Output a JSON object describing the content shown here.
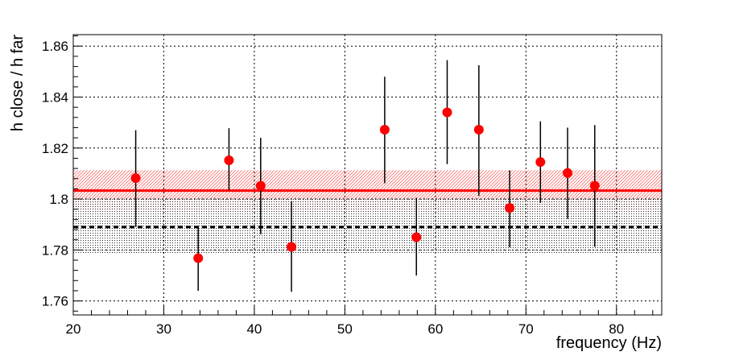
{
  "chart_data": {
    "type": "scatter",
    "xlabel": "frequency (Hz)",
    "ylabel": "h close / h far",
    "xlim": [
      20,
      85
    ],
    "ylim": [
      1.7545,
      1.8645
    ],
    "grid": true,
    "x_ticks": [
      20,
      30,
      40,
      50,
      60,
      70,
      80
    ],
    "y_ticks": [
      1.76,
      1.78,
      1.8,
      1.82,
      1.84,
      1.86
    ],
    "x_tick_labels": [
      "20",
      "30",
      "40",
      "50",
      "60",
      "70",
      "80"
    ],
    "y_tick_labels": [
      "1.76",
      "1.78",
      "1.8",
      "1.82",
      "1.84",
      "1.86"
    ],
    "points": [
      {
        "x": 26.9,
        "y": 1.8082,
        "err_low": 0.0192,
        "err_high": 0.0188
      },
      {
        "x": 33.8,
        "y": 1.7768,
        "err_low": 0.0128,
        "err_high": 0.0122
      },
      {
        "x": 37.2,
        "y": 1.8152,
        "err_low": 0.0118,
        "err_high": 0.0126
      },
      {
        "x": 40.7,
        "y": 1.8052,
        "err_low": 0.019,
        "err_high": 0.0188
      },
      {
        "x": 44.1,
        "y": 1.7812,
        "err_low": 0.0176,
        "err_high": 0.018
      },
      {
        "x": 54.4,
        "y": 1.8272,
        "err_low": 0.021,
        "err_high": 0.0208
      },
      {
        "x": 57.9,
        "y": 1.785,
        "err_low": 0.015,
        "err_high": 0.0155
      },
      {
        "x": 61.3,
        "y": 1.834,
        "err_low": 0.0203,
        "err_high": 0.0205
      },
      {
        "x": 64.8,
        "y": 1.8272,
        "err_low": 0.026,
        "err_high": 0.0253
      },
      {
        "x": 68.2,
        "y": 1.7965,
        "err_low": 0.0155,
        "err_high": 0.0147
      },
      {
        "x": 71.6,
        "y": 1.8145,
        "err_low": 0.016,
        "err_high": 0.016
      },
      {
        "x": 74.6,
        "y": 1.8102,
        "err_low": 0.018,
        "err_high": 0.0178
      },
      {
        "x": 77.6,
        "y": 1.8052,
        "err_low": 0.024,
        "err_high": 0.0238
      }
    ],
    "fits": [
      {
        "value": 1.8033,
        "band_low": 1.7953,
        "band_high": 1.8113,
        "color": "#ff0000",
        "line_style": "solid",
        "band_pattern": "hatched"
      },
      {
        "value": 1.789,
        "band_low": 1.7783,
        "band_high": 1.8,
        "color": "#000000",
        "line_style": "dashed",
        "band_pattern": "dotted"
      }
    ],
    "colors": {
      "points": "#ff0000",
      "error_bars": "#000000",
      "axes": "#000000",
      "grid": "#000000"
    }
  }
}
